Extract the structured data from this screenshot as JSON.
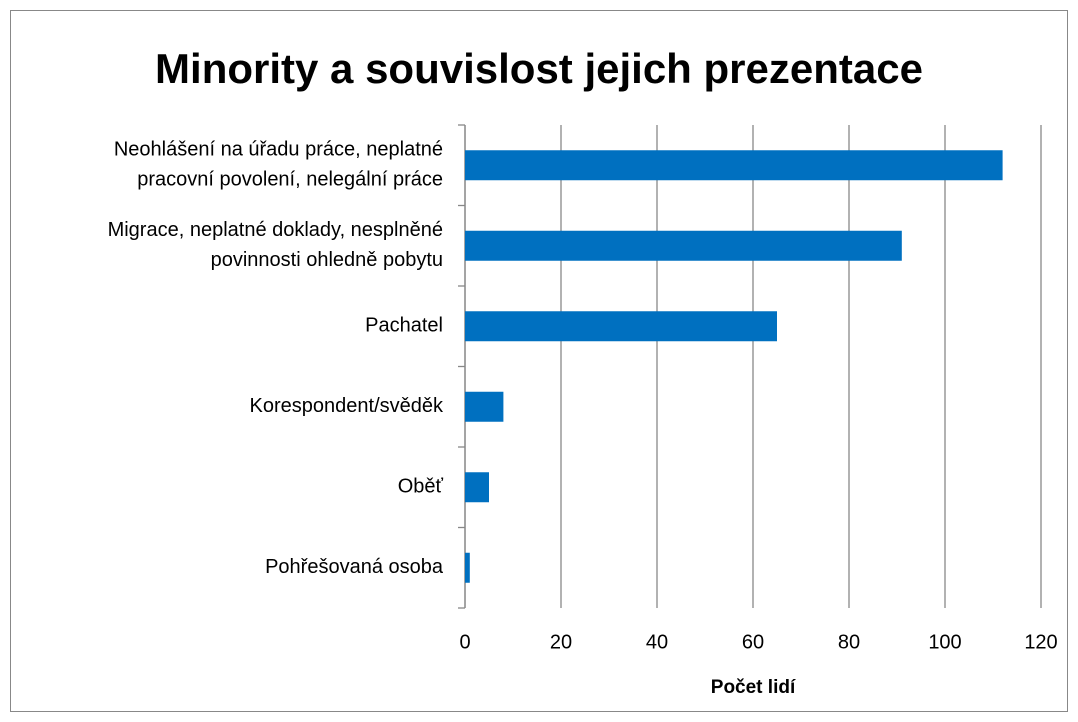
{
  "chart_data": {
    "type": "bar",
    "orientation": "horizontal",
    "title": "Minority a souvislost jejich prezentace",
    "x_axis_label": "Počet lidí",
    "categories": [
      [
        "Neohlášení na úřadu práce, neplatné",
        "pracovní povolení, nelegální práce"
      ],
      [
        "Migrace, neplatné doklady, nesplněné",
        "povinnosti ohledně pobytu"
      ],
      [
        "Pachatel"
      ],
      [
        "Korespondent/svěděk"
      ],
      [
        "Oběť"
      ],
      [
        "Pohřešovaná osoba"
      ]
    ],
    "values": [
      112,
      91,
      65,
      8,
      5,
      1
    ],
    "color": "#0070c0",
    "xlim": [
      0,
      120
    ],
    "xticks": [
      0,
      20,
      40,
      60,
      80,
      100,
      120
    ],
    "grid": true
  }
}
